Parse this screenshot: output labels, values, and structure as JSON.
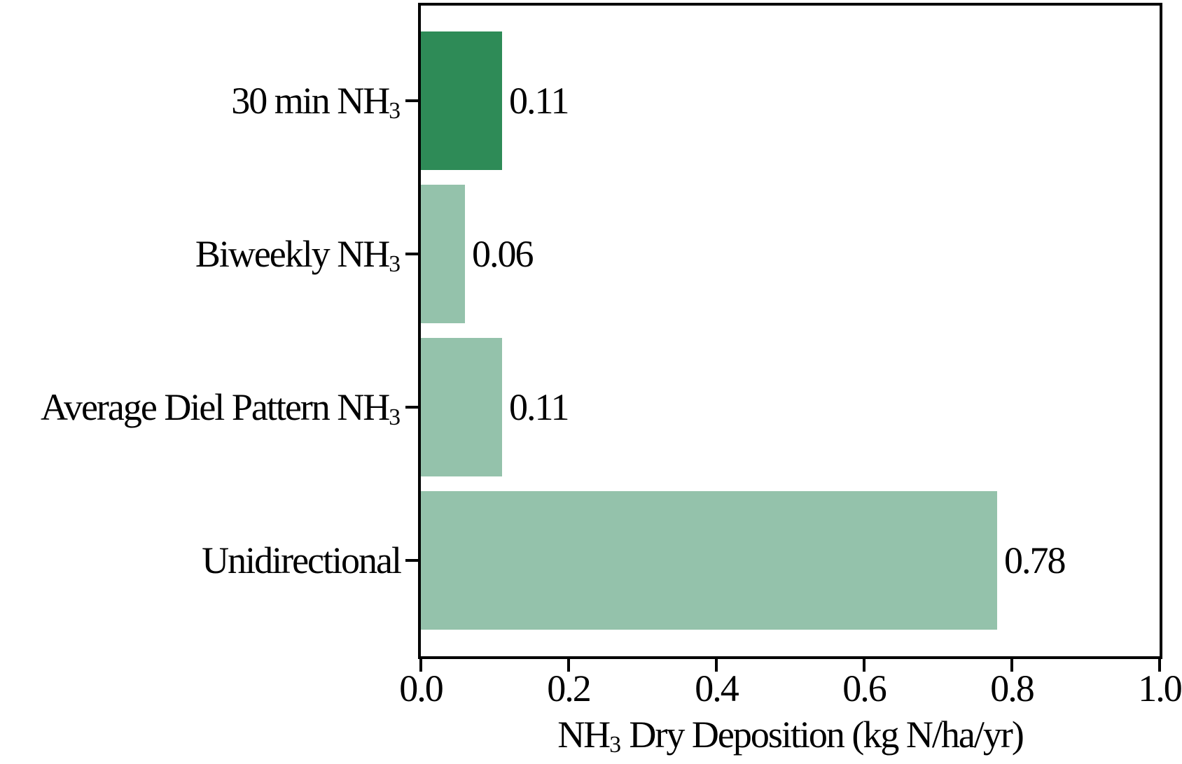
{
  "figure": {
    "background": "#ffffff",
    "spine_color": "#000000",
    "text_color": "#000000"
  },
  "chart_data": {
    "type": "bar",
    "orientation": "horizontal",
    "title": "",
    "xlabel": "NH3 Dry Deposition (kg N/ha/yr)",
    "xlabel_parts": {
      "prefix": "NH",
      "subscript": "3",
      "suffix": " Dry Deposition (kg N/ha/yr)"
    },
    "xlim": [
      0.0,
      1.0
    ],
    "xticks": [
      0.0,
      0.2,
      0.4,
      0.6,
      0.8,
      1.0
    ],
    "xtick_labels": [
      "0.0",
      "0.2",
      "0.4",
      "0.6",
      "0.8",
      "1.0"
    ],
    "grid": false,
    "legend": false,
    "categories": [
      "30 min NH3",
      "Biweekly NH3",
      "Average Diel Pattern NH3",
      "Unidirectional"
    ],
    "values": [
      0.11,
      0.06,
      0.11,
      0.78
    ],
    "bars": [
      {
        "category": "30 min NH3",
        "label_prefix": "30 min NH",
        "label_subscript": "3",
        "value": 0.11,
        "value_label": "0.11",
        "color": "#2e8b57"
      },
      {
        "category": "Biweekly NH3",
        "label_prefix": "Biweekly NH",
        "label_subscript": "3",
        "value": 0.06,
        "value_label": "0.06",
        "color": "#94c2ab"
      },
      {
        "category": "Average Diel Pattern NH3",
        "label_prefix": "Average Diel Pattern NH",
        "label_subscript": "3",
        "value": 0.11,
        "value_label": "0.11",
        "color": "#94c2ab"
      },
      {
        "category": "Unidirectional",
        "label_prefix": "Unidirectional",
        "label_subscript": "",
        "value": 0.78,
        "value_label": "0.78",
        "color": "#94c2ab"
      }
    ]
  }
}
